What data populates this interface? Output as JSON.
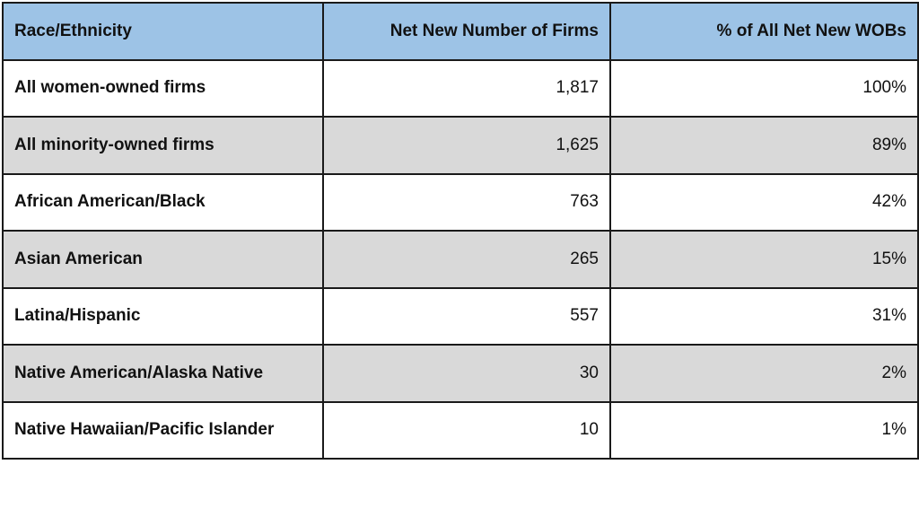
{
  "table": {
    "header": [
      "Race/Ethnicity",
      "Net New Number of Firms",
      "% of All Net New WOBs"
    ],
    "rows": [
      [
        "All women-owned firms",
        "1,817",
        "100%"
      ],
      [
        "All minority-owned firms",
        "1,625",
        "89%"
      ],
      [
        "African American/Black",
        "763",
        "42%"
      ],
      [
        "Asian American",
        "265",
        "15%"
      ],
      [
        "Latina/Hispanic",
        "557",
        "31%"
      ],
      [
        "Native American/Alaska Native",
        "30",
        "2%"
      ],
      [
        "Native Hawaiian/Pacific Islander",
        "10",
        "1%"
      ]
    ]
  }
}
